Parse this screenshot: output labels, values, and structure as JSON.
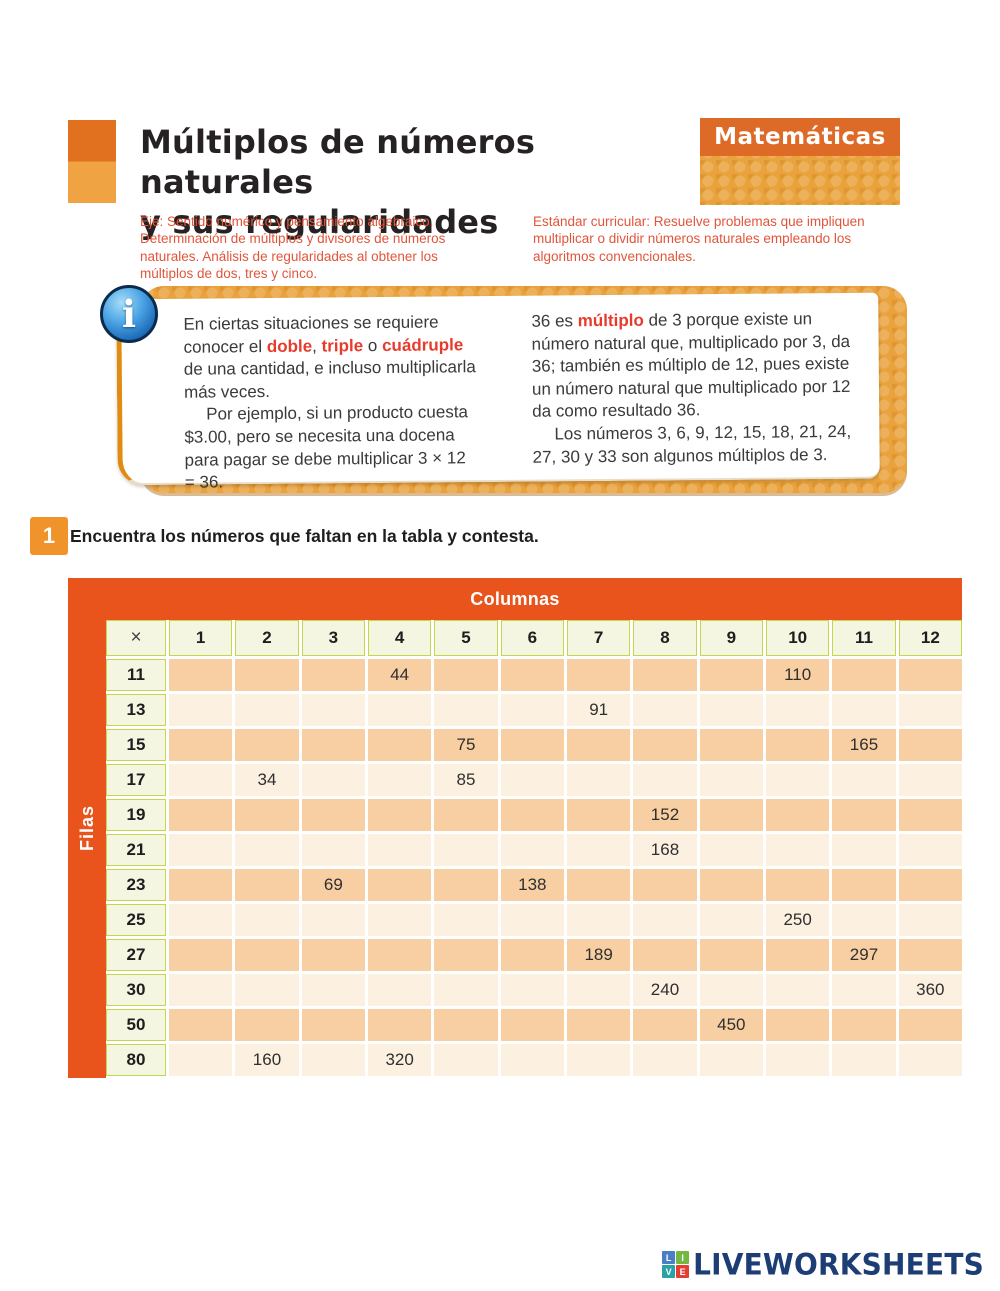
{
  "colors": {
    "table_orange": "#e8541c",
    "badge_orange": "#f0932b",
    "bar_orange": "#de6a28",
    "panel_orange": "#e9a23c",
    "curriculum_text_red": "#e2553a",
    "highlight_red": "#e73b2c",
    "header_cell_bg": "#f4f6e2",
    "header_cell_border": "#c3d64e",
    "row_peach_dark": "#f8cfa2",
    "row_peach_light": "#fcf0e0",
    "brand_navy": "#1d3e75"
  },
  "header": {
    "title_line1": "Múltiplos de números naturales",
    "title_line2": "y sus regularidades",
    "subject_badge": "Matemáticas",
    "eje": "Eje: Sentido numérico y pensamiento algebraico. Determinación de múltiplos y divisores de números naturales. Análisis de regularidades al obtener los múltiplos de dos, tres y cinco.",
    "estandar": "Estándar curricular: Resuelve problemas que impliquen multiplicar o dividir números naturales empleando los algoritmos convencionales."
  },
  "info_box": {
    "icon": "i",
    "left_paragraphs": [
      [
        {
          "t": "En ciertas situaciones se requiere conocer el "
        },
        {
          "t": "doble",
          "hl": true
        },
        {
          "t": ", "
        },
        {
          "t": "triple",
          "hl": true
        },
        {
          "t": " o "
        },
        {
          "t": "cuádruple",
          "hl": true
        },
        {
          "t": " de una cantidad, e incluso multiplicarla más veces."
        }
      ],
      [
        {
          "t": "Por ejemplo, si un producto cuesta $3.00, pero se necesita una docena para pagar se debe multiplicar 3 × 12 = 36."
        }
      ]
    ],
    "right_paragraphs": [
      [
        {
          "t": "36 es "
        },
        {
          "t": "múltiplo",
          "hl": true
        },
        {
          "t": " de 3 porque existe un número natural que, multiplicado por 3, da 36; también es múltiplo de 12, pues existe un número natural que multiplicado por 12 da como resultado 36."
        }
      ],
      [
        {
          "t": "Los números 3, 6, 9, 12, 15, 18, 21, 24, 27, 30 y 33 son algunos múltiplos de 3."
        }
      ]
    ]
  },
  "exercise": {
    "number": "1",
    "instruction": "Encuentra los números que faltan en la tabla y contesta."
  },
  "table": {
    "columns_label": "Columnas",
    "rows_label": "Filas",
    "corner": "×",
    "col_headers": [
      "1",
      "2",
      "3",
      "4",
      "5",
      "6",
      "7",
      "8",
      "9",
      "10",
      "11",
      "12"
    ],
    "rows": [
      {
        "header": "11",
        "cells": {
          "4": "44",
          "10": "110"
        }
      },
      {
        "header": "13",
        "cells": {
          "7": "91"
        }
      },
      {
        "header": "15",
        "cells": {
          "5": "75",
          "11": "165"
        }
      },
      {
        "header": "17",
        "cells": {
          "2": "34",
          "5": "85"
        }
      },
      {
        "header": "19",
        "cells": {
          "8": "152"
        }
      },
      {
        "header": "21",
        "cells": {
          "8": "168"
        }
      },
      {
        "header": "23",
        "cells": {
          "3": "69",
          "6": "138"
        }
      },
      {
        "header": "25",
        "cells": {
          "10": "250"
        }
      },
      {
        "header": "27",
        "cells": {
          "7": "189",
          "11": "297"
        }
      },
      {
        "header": "30",
        "cells": {
          "8": "240",
          "12": "360"
        }
      },
      {
        "header": "50",
        "cells": {
          "9": "450"
        }
      },
      {
        "header": "80",
        "cells": {
          "2": "160",
          "4": "320"
        }
      }
    ]
  },
  "footer": {
    "brand": "LIVEWORKSHEETS",
    "logo_squares": [
      {
        "letter": "L",
        "color": "#4a7fc4"
      },
      {
        "letter": "I",
        "color": "#74b843"
      },
      {
        "letter": "V",
        "color": "#2ba3a6"
      },
      {
        "letter": "E",
        "color": "#e23e34"
      }
    ]
  }
}
